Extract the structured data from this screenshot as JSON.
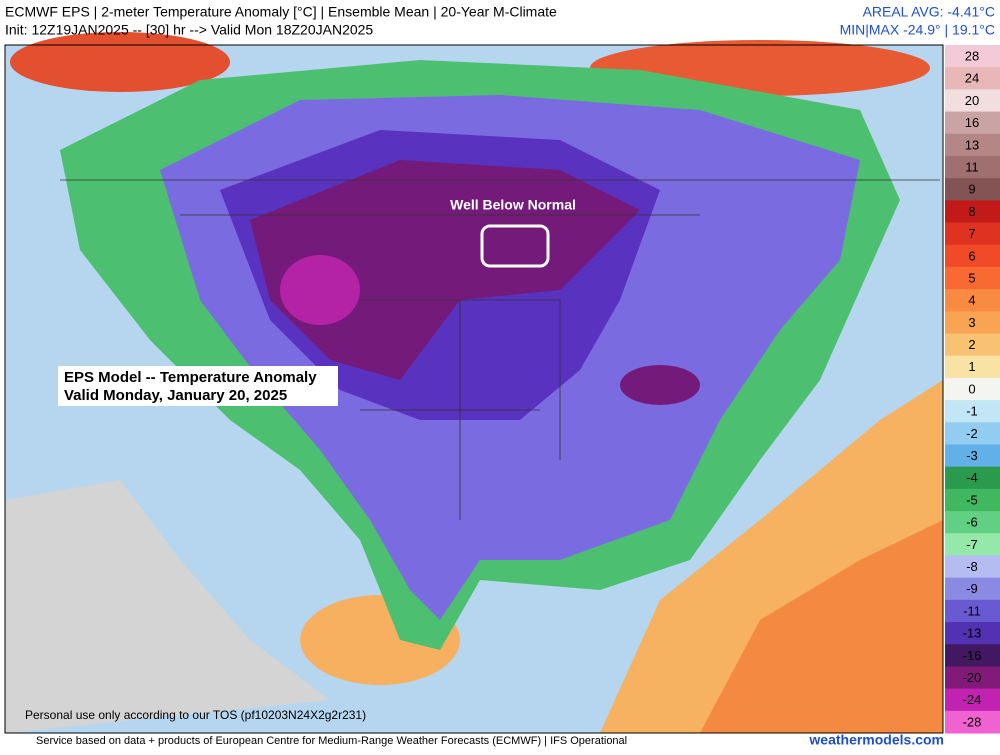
{
  "header": {
    "title": "ECMWF EPS | 2-meter Temperature Anomaly [°C] | Ensemble Mean | 20-Year M-Climate",
    "subtitle": "Init: 12Z19JAN2025 -- [30] hr --> Valid Mon 18Z20JAN2025",
    "areal_avg": "AREAL AVG: -4.41°C",
    "min_max": "MIN|MAX -24.9° | 19.1°C"
  },
  "annotations": {
    "highlight": "Well Below Normal",
    "box_lines": [
      "EPS Model -- Temperature Anomaly",
      "Valid Monday, January 20, 2025"
    ],
    "tos": "Personal use only according to our TOS (pf10203N24X2g2r231)"
  },
  "footer": {
    "credit": "Service based on data + products of European Centre for Medium-Range Weather Forecasts (ECMWF) | IFS Operational",
    "site": "weathermodels.com"
  },
  "colorbar": {
    "labels": [
      28,
      24,
      20,
      16,
      13,
      11,
      9,
      8,
      7,
      6,
      5,
      4,
      3,
      2,
      1,
      0,
      -1,
      -2,
      -3,
      -4,
      -5,
      -6,
      -7,
      -8,
      -9,
      -11,
      -13,
      -16,
      -20,
      -24,
      -28
    ],
    "colors": [
      "#f2cad8",
      "#e8b8b8",
      "#f2dede",
      "#caa4a4",
      "#b48686",
      "#a07070",
      "#845454",
      "#c21a18",
      "#e03220",
      "#f04a28",
      "#f86a32",
      "#f88a42",
      "#f8a452",
      "#f8c272",
      "#f8e2a4",
      "#f4f4f0",
      "#c2e6f6",
      "#92ccf0",
      "#62b0e8",
      "#2a9a4c",
      "#40b860",
      "#62d082",
      "#94e8aa",
      "#b4bcf2",
      "#8a8ae2",
      "#6a5ad2",
      "#5232b2",
      "#421862",
      "#821a7a",
      "#c222b2",
      "#f062d2"
    ]
  }
}
